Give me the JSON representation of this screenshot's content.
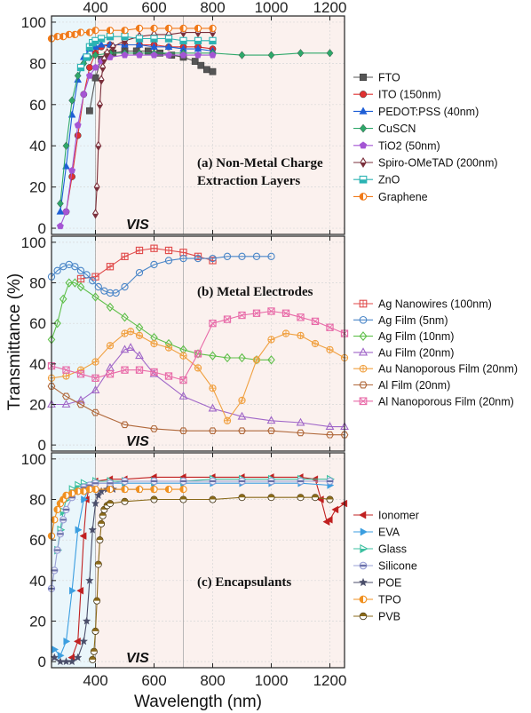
{
  "chart_data": [
    {
      "type": "line",
      "panel_label": [
        "(a) Non-Metal Charge",
        "Extraction Layers"
      ],
      "region_label": "VIS",
      "ylim": [
        -3,
        103
      ],
      "xlim": [
        250,
        1250
      ],
      "grid": true,
      "legend_position": "right",
      "series": [
        {
          "name": "FTO",
          "color": "#555555",
          "marker": "square",
          "x": [
            380,
            400,
            420,
            440,
            460,
            500,
            540,
            580,
            620,
            660,
            700,
            740,
            760,
            780,
            800
          ],
          "y": [
            57,
            73,
            82,
            84,
            85,
            86,
            86,
            86,
            85,
            84,
            83,
            81,
            79,
            77,
            76
          ]
        },
        {
          "name": "ITO (150nm)",
          "color": "#e03030",
          "marker": "circle",
          "x": [
            300,
            320,
            340,
            360,
            380,
            400,
            420,
            450,
            500,
            550,
            600,
            650,
            700,
            750,
            800
          ],
          "y": [
            8,
            25,
            45,
            65,
            78,
            85,
            88,
            89,
            89,
            89,
            89,
            88,
            88,
            88,
            87
          ]
        },
        {
          "name": "PEDOT:PSS (40nm)",
          "color": "#1f5fd6",
          "marker": "triangle-up",
          "x": [
            280,
            300,
            320,
            340,
            360,
            380,
            400,
            420,
            450,
            500,
            550,
            600,
            650,
            700,
            750,
            800
          ],
          "y": [
            8,
            30,
            55,
            72,
            83,
            87,
            88,
            89,
            89,
            89,
            89,
            88,
            88,
            87,
            87,
            86
          ]
        },
        {
          "name": "CuSCN",
          "color": "#2ea86a",
          "marker": "diamond",
          "x": [
            280,
            300,
            320,
            340,
            360,
            380,
            400,
            450,
            500,
            550,
            600,
            700,
            800,
            900,
            1000,
            1100,
            1200
          ],
          "y": [
            12,
            40,
            62,
            74,
            80,
            83,
            84,
            85,
            85,
            85,
            85,
            85,
            85,
            84,
            84,
            85,
            85
          ]
        },
        {
          "name": "TiO2 (50nm)",
          "color": "#a455d4",
          "marker": "pentagon",
          "x": [
            280,
            300,
            320,
            340,
            360,
            380,
            400,
            420,
            450,
            500,
            550,
            600,
            650,
            700,
            750,
            800
          ],
          "y": [
            1,
            8,
            28,
            50,
            65,
            74,
            78,
            81,
            83,
            84,
            84,
            84,
            84,
            84,
            84,
            84
          ]
        },
        {
          "name": "Spiro-OMeTAD (200nm)",
          "color": "#7a2f3b",
          "marker": "diamond-half",
          "x": [
            400,
            405,
            410,
            415,
            420,
            425,
            430,
            440,
            460,
            500,
            550,
            600,
            650,
            700,
            750,
            800
          ],
          "y": [
            7,
            20,
            40,
            60,
            72,
            78,
            82,
            85,
            88,
            91,
            93,
            94,
            94,
            95,
            95,
            95
          ]
        },
        {
          "name": "ZnO",
          "color": "#2bb3b3",
          "marker": "square-half",
          "x": [
            350,
            370,
            380,
            390,
            400,
            420,
            450,
            500,
            550,
            600,
            650,
            700,
            750,
            800
          ],
          "y": [
            78,
            83,
            88,
            90,
            91,
            92,
            93,
            93,
            92,
            92,
            92,
            91,
            91,
            91
          ]
        },
        {
          "name": "Graphene",
          "color": "#f07a1a",
          "marker": "circle-half",
          "x": [
            250,
            270,
            290,
            310,
            330,
            350,
            380,
            400,
            450,
            500,
            550,
            600,
            650,
            700,
            750,
            800
          ],
          "y": [
            92,
            93,
            93,
            94,
            94,
            95,
            95,
            96,
            96,
            96,
            97,
            97,
            97,
            97,
            97,
            97
          ]
        }
      ]
    },
    {
      "type": "line",
      "panel_label": [
        "(b) Metal Electrodes"
      ],
      "region_label": "VIS",
      "ylim": [
        -3,
        103
      ],
      "xlim": [
        250,
        1250
      ],
      "grid": true,
      "legend_position": "right",
      "series": [
        {
          "name": "Ag Nanowires (100nm)",
          "color": "#e04a4a",
          "marker": "square-plus",
          "x": [
            350,
            400,
            450,
            500,
            550,
            600,
            650,
            700,
            750,
            800
          ],
          "y": [
            82,
            83,
            88,
            93,
            96,
            97,
            96,
            95,
            93,
            91
          ]
        },
        {
          "name": "Ag Film (5nm)",
          "color": "#4a86c8",
          "marker": "circle-open",
          "x": [
            250,
            270,
            290,
            310,
            330,
            350,
            370,
            390,
            410,
            430,
            450,
            470,
            500,
            550,
            600,
            650,
            700,
            750,
            800,
            850,
            900,
            950,
            1000
          ],
          "y": [
            83,
            86,
            88,
            89,
            88,
            86,
            84,
            81,
            78,
            76,
            75,
            75,
            78,
            85,
            89,
            91,
            92,
            92,
            92,
            93,
            93,
            93,
            93
          ]
        },
        {
          "name": "Ag Film (10nm)",
          "color": "#5fbf4a",
          "marker": "diamond-open",
          "x": [
            250,
            270,
            290,
            310,
            330,
            350,
            400,
            450,
            500,
            550,
            600,
            650,
            700,
            750,
            800,
            850,
            900,
            950,
            1000
          ],
          "y": [
            52,
            60,
            72,
            80,
            80,
            78,
            73,
            68,
            63,
            58,
            53,
            50,
            47,
            45,
            44,
            43,
            43,
            42,
            42
          ]
        },
        {
          "name": "Au Film (20nm)",
          "color": "#a066c8",
          "marker": "triangle-open",
          "x": [
            250,
            300,
            350,
            400,
            450,
            500,
            520,
            550,
            600,
            700,
            800,
            900,
            1000,
            1100,
            1200,
            1250
          ],
          "y": [
            20,
            20,
            22,
            27,
            38,
            47,
            48,
            44,
            35,
            24,
            18,
            14,
            12,
            11,
            9,
            9
          ]
        },
        {
          "name": "Au Nanoporous Film (20nm)",
          "color": "#f0a040",
          "marker": "circle-plus",
          "x": [
            250,
            300,
            350,
            400,
            450,
            500,
            520,
            550,
            600,
            650,
            700,
            750,
            800,
            850,
            900,
            950,
            1000,
            1050,
            1100,
            1150,
            1200,
            1250
          ],
          "y": [
            33,
            34,
            37,
            41,
            49,
            55,
            56,
            54,
            50,
            48,
            44,
            38,
            28,
            12,
            22,
            42,
            52,
            55,
            54,
            50,
            47,
            43
          ]
        },
        {
          "name": "Al Film (20nm)",
          "color": "#b0683a",
          "marker": "hexagon-open",
          "x": [
            250,
            300,
            350,
            400,
            500,
            600,
            700,
            800,
            900,
            1000,
            1100,
            1200,
            1250
          ],
          "y": [
            29,
            24,
            20,
            16,
            10,
            8,
            7,
            7,
            7,
            7,
            6,
            5,
            5
          ]
        },
        {
          "name": "Al Nanoporous Film (20nm)",
          "color": "#e86aa8",
          "marker": "x-square",
          "x": [
            250,
            300,
            350,
            400,
            450,
            500,
            550,
            600,
            650,
            700,
            750,
            800,
            850,
            900,
            950,
            1000,
            1050,
            1100,
            1150,
            1200,
            1250
          ],
          "y": [
            39,
            37,
            35,
            33,
            35,
            37,
            37,
            36,
            34,
            32,
            45,
            60,
            62,
            64,
            65,
            66,
            65,
            63,
            61,
            58,
            55
          ]
        }
      ]
    },
    {
      "type": "line",
      "panel_label": [
        "(c) Encapsulants"
      ],
      "region_label": "VIS",
      "ylim": [
        -3,
        103
      ],
      "xlim": [
        250,
        1250
      ],
      "grid": true,
      "legend_position": "right",
      "series": [
        {
          "name": "Ionomer",
          "color": "#c02020",
          "marker": "triangle-left",
          "x": [
            320,
            340,
            350,
            360,
            370,
            380,
            400,
            450,
            500,
            600,
            700,
            800,
            900,
            1000,
            1100,
            1150,
            1170,
            1190,
            1200,
            1220,
            1250
          ],
          "y": [
            2,
            10,
            35,
            62,
            80,
            87,
            89,
            90,
            90,
            91,
            91,
            91,
            91,
            91,
            91,
            90,
            80,
            69,
            70,
            75,
            78
          ]
        },
        {
          "name": "EVA",
          "color": "#3b9ee0",
          "marker": "triangle-right",
          "x": [
            260,
            280,
            300,
            320,
            340,
            360,
            380,
            400,
            450,
            500,
            600,
            700,
            800,
            900,
            1000,
            1100,
            1200
          ],
          "y": [
            6,
            3,
            10,
            35,
            65,
            80,
            86,
            88,
            88,
            88,
            88,
            88,
            88,
            88,
            88,
            88,
            87
          ]
        },
        {
          "name": "Glass",
          "color": "#3cc0a0",
          "marker": "triangle-right-half",
          "x": [
            270,
            280,
            290,
            300,
            320,
            340,
            360,
            400,
            450,
            500,
            600,
            700,
            800,
            900,
            1000,
            1100,
            1200
          ],
          "y": [
            55,
            65,
            74,
            80,
            85,
            87,
            88,
            89,
            89,
            89,
            89,
            89,
            90,
            90,
            90,
            90,
            90
          ]
        },
        {
          "name": "Silicone",
          "color": "#9aa0d6",
          "marker": "circle-band",
          "x": [
            250,
            260,
            270,
            280,
            290,
            300,
            320,
            340,
            360,
            380,
            400,
            450,
            500,
            600,
            700,
            800,
            900,
            1000,
            1100,
            1200
          ],
          "y": [
            36,
            45,
            55,
            63,
            70,
            75,
            81,
            84,
            86,
            87,
            88,
            88,
            89,
            89,
            89,
            89,
            89,
            89,
            89,
            89
          ]
        },
        {
          "name": "POE",
          "color": "#4a4e6a",
          "marker": "star",
          "x": [
            260,
            280,
            300,
            320,
            340,
            360,
            370,
            380,
            390,
            400,
            410,
            420,
            440,
            460,
            500,
            550,
            600
          ],
          "y": [
            2,
            0,
            0,
            0,
            2,
            10,
            20,
            40,
            65,
            78,
            82,
            84,
            85,
            85,
            85,
            85,
            85
          ]
        },
        {
          "name": "TPO",
          "color": "#f09020",
          "marker": "circle-half",
          "x": [
            250,
            260,
            270,
            280,
            290,
            300,
            320,
            340,
            360,
            380,
            400,
            450,
            500,
            550,
            600,
            650,
            700
          ],
          "y": [
            62,
            70,
            75,
            78,
            80,
            82,
            83,
            84,
            84,
            85,
            85,
            85,
            85,
            85,
            85,
            85,
            85
          ]
        },
        {
          "name": "PVB",
          "color": "#8a6a1a",
          "marker": "circle-half-dark",
          "x": [
            390,
            395,
            400,
            405,
            410,
            415,
            420,
            425,
            430,
            440,
            450,
            500,
            600,
            700,
            800,
            900,
            1000,
            1100,
            1150,
            1200
          ],
          "y": [
            1,
            5,
            15,
            30,
            48,
            60,
            68,
            72,
            75,
            77,
            78,
            79,
            80,
            80,
            80,
            81,
            81,
            81,
            81,
            80
          ]
        }
      ]
    }
  ],
  "axes": {
    "top_ticks": [
      "400",
      "600",
      "800",
      "1000",
      "1200"
    ],
    "top_tick_values": [
      400,
      600,
      800,
      1000,
      1200
    ],
    "bottom_ticks": [
      "400",
      "600",
      "800",
      "1000",
      "1200"
    ],
    "bottom_tick_values": [
      400,
      600,
      800,
      1000,
      1200
    ],
    "y_ticks": [
      "0",
      "20",
      "40",
      "60",
      "80",
      "100"
    ],
    "y_tick_values": [
      0,
      20,
      40,
      60,
      80,
      100
    ],
    "xlabel": "Wavelength (nm)",
    "ylabel": "Transmittance (%)"
  },
  "colors": {
    "vis_band": "#eaf6fb",
    "ir_band": "#fbf1ee",
    "grid": "#d8d8d8"
  }
}
